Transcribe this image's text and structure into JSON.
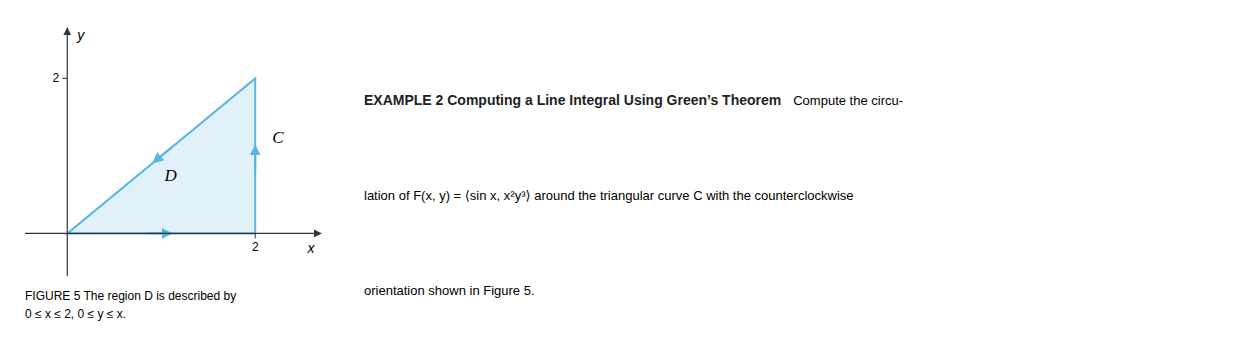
{
  "chart_data": {
    "type": "polygon",
    "title": "EXAMPLE 2 Computing a Line Integral Using Green’s Theorem",
    "subtitle": [
      "Compute the circu-",
      "lation of F(x, y) = ⟨sin x, x²y³⟩ around the triangular curve C with the counterclockwise",
      "orientation shown in Figure 5."
    ],
    "caption": [
      "FIGURE 5 The region D is described by",
      "0 ≤ x ≤ 2, 0 ≤ y ≤ x."
    ],
    "x_label": "x",
    "y_label": "y",
    "x": [
      0,
      2,
      2
    ],
    "values": [
      0,
      0,
      2
    ],
    "color": "#5ab4e0",
    "xlim": [
      -0.45,
      2.7
    ],
    "ylim": [
      -0.55,
      2.65
    ],
    "xticks": [
      2
    ],
    "yticks": [
      2
    ],
    "grid": false,
    "annotations": [
      {
        "text": "D",
        "x": 1.1,
        "y": 0.75
      },
      {
        "text": "C",
        "x": 2.18,
        "y": 1.25
      }
    ]
  }
}
